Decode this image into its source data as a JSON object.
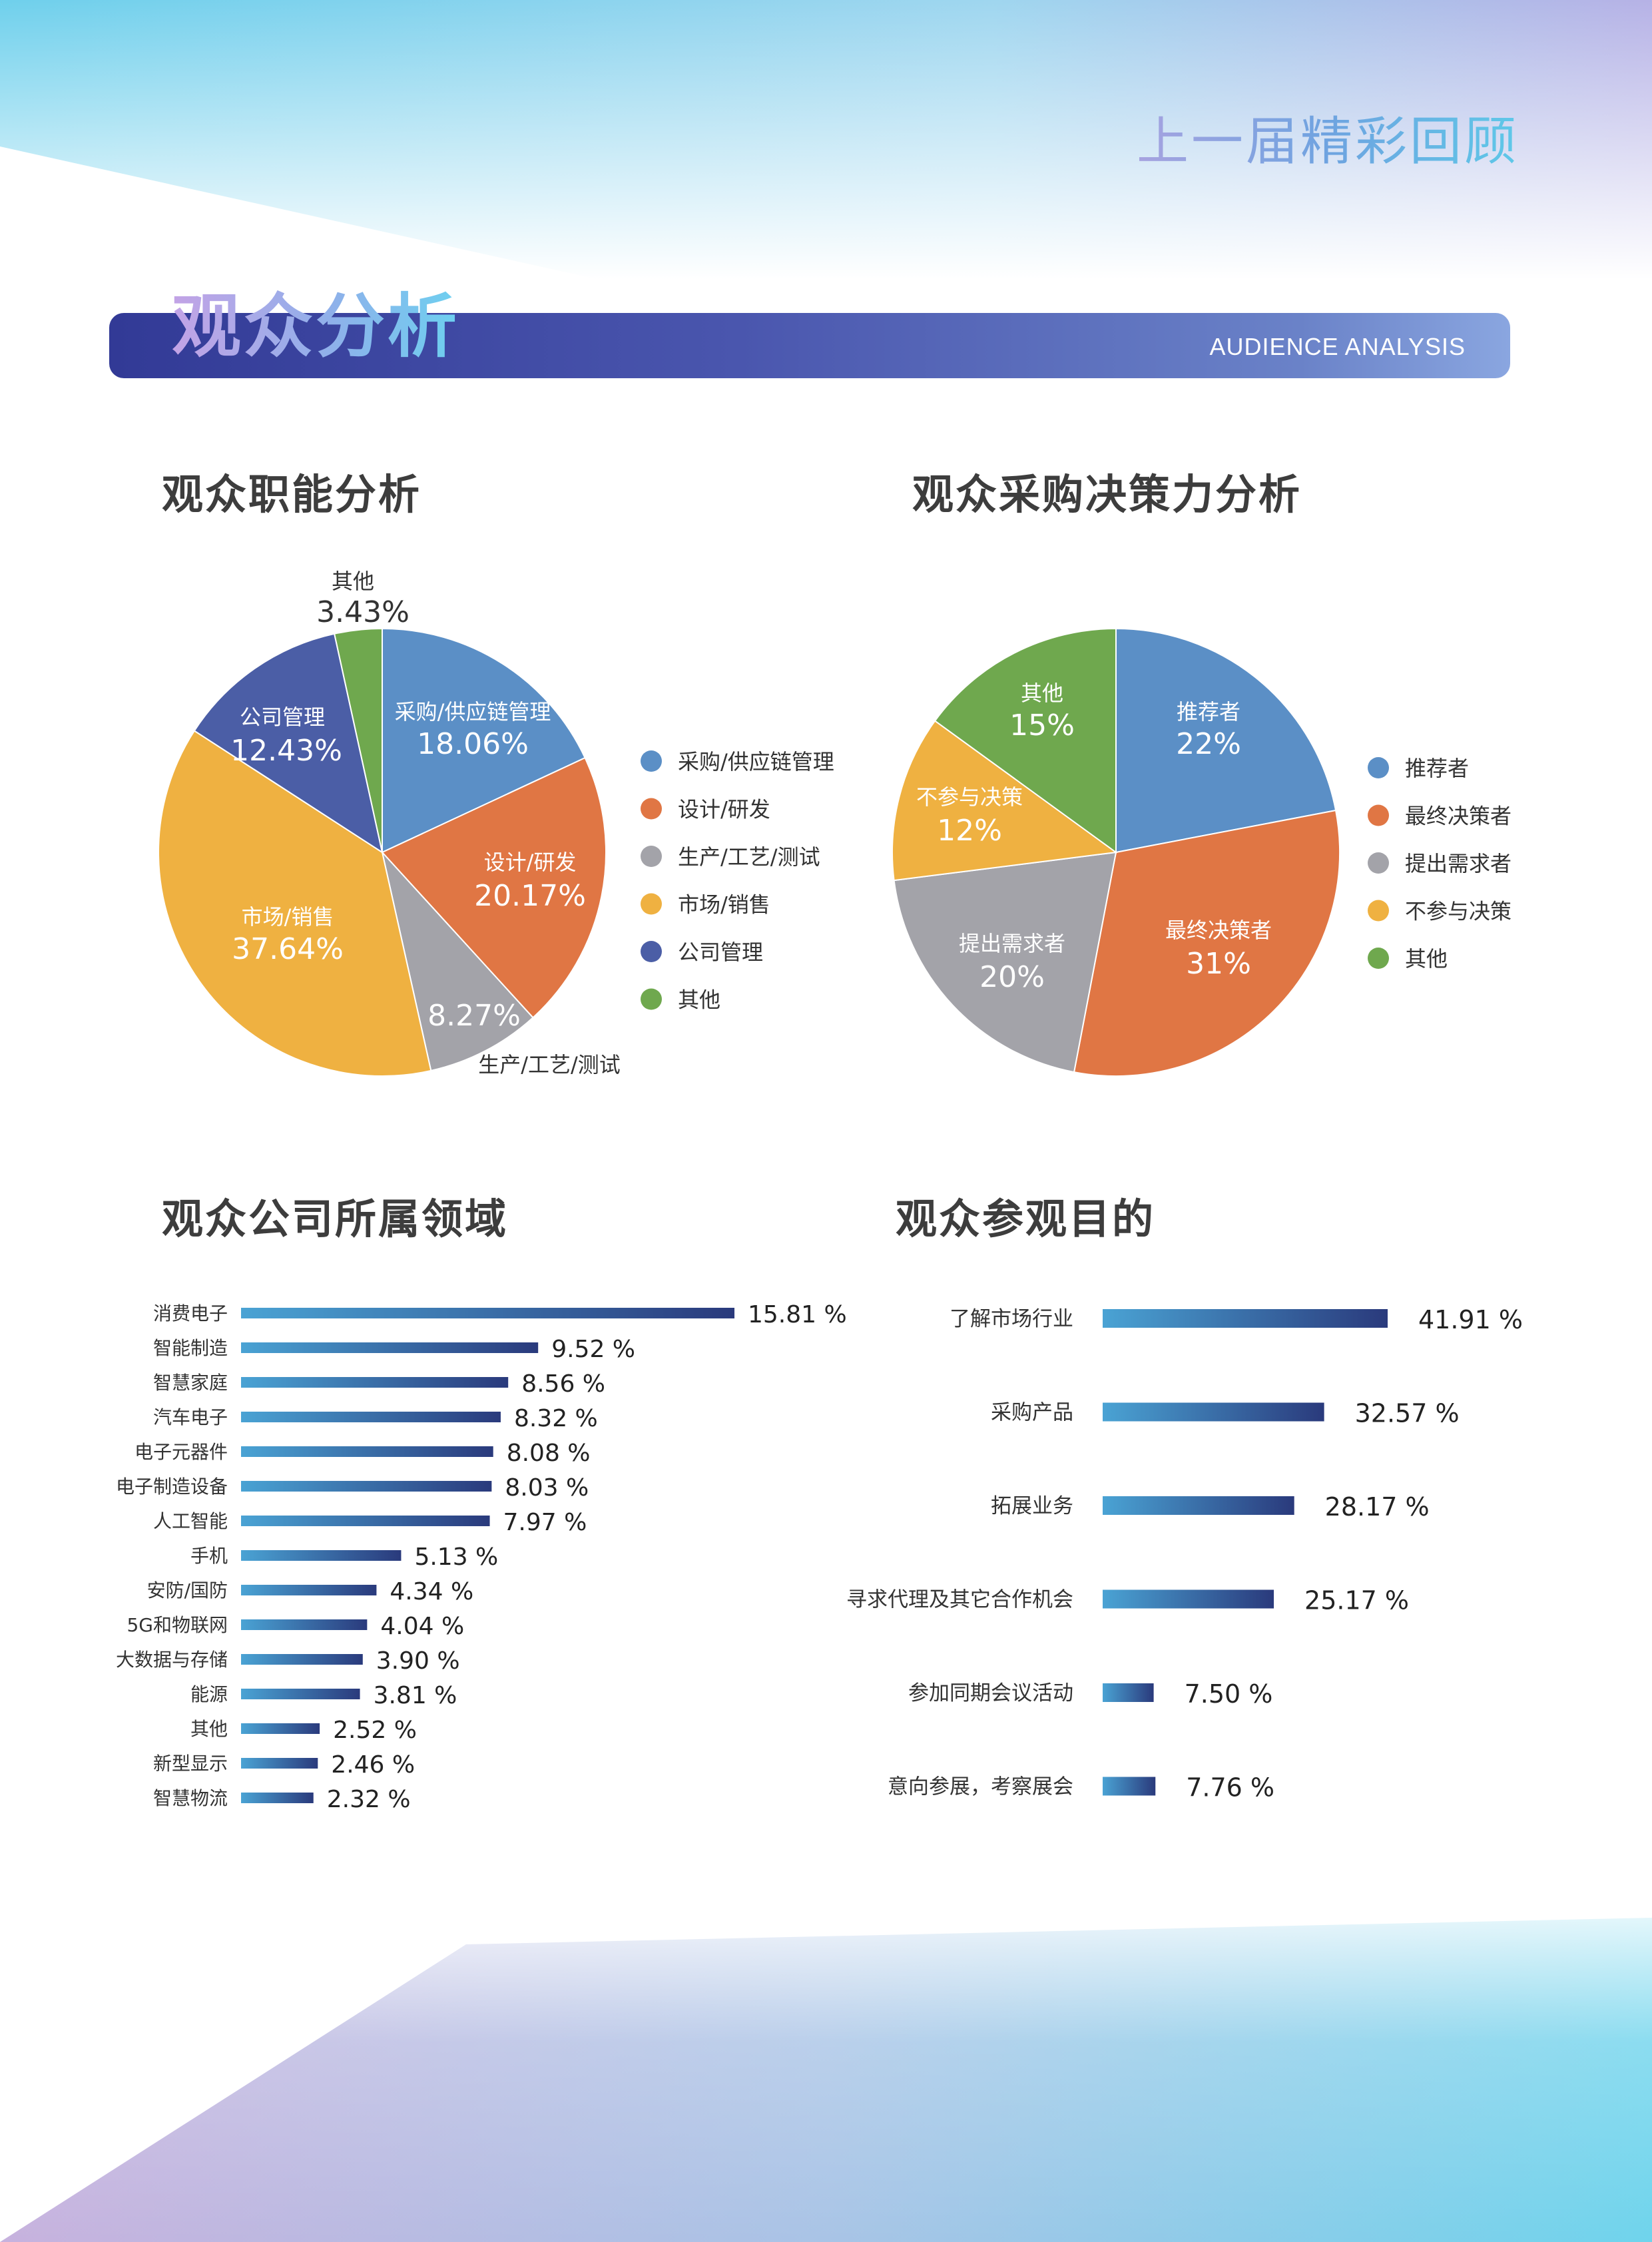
{
  "header": {
    "title": "上一届精彩回顾"
  },
  "banner": {
    "title_cn": "观众分析",
    "title_en": "AUDIENCE ANALYSIS"
  },
  "sections": {
    "function": "观众职能分析",
    "decision": "观众采购决策力分析",
    "industry": "观众公司所属领域",
    "purpose": "观众参观目的"
  },
  "chart_data": [
    {
      "type": "pie",
      "title": "观众职能分析",
      "slices": [
        {
          "label": "采购/供应链管理",
          "value": 18.06,
          "display": "18.06%",
          "color": "#5b8fc6"
        },
        {
          "label": "设计/研发",
          "value": 20.17,
          "display": "20.17%",
          "color": "#e07644"
        },
        {
          "label": "生产/工艺/测试",
          "value": 8.27,
          "display": "8.27%",
          "color": "#a3a3a9"
        },
        {
          "label": "市场/销售",
          "value": 37.64,
          "display": "37.64%",
          "color": "#efb141"
        },
        {
          "label": "公司管理",
          "value": 12.43,
          "display": "12.43%",
          "color": "#4b5ea6"
        },
        {
          "label": "其他",
          "value": 3.43,
          "display": "3.43%",
          "color": "#6fa84e"
        }
      ],
      "legend": [
        "采购/供应链管理",
        "设计/研发",
        "生产/工艺/测试",
        "市场/销售",
        "公司管理",
        "其他"
      ]
    },
    {
      "type": "pie",
      "title": "观众采购决策力分析",
      "slices": [
        {
          "label": "推荐者",
          "value": 22,
          "display": "22%",
          "color": "#5b8fc6"
        },
        {
          "label": "最终决策者",
          "value": 31,
          "display": "31%",
          "color": "#e07644"
        },
        {
          "label": "提出需求者",
          "value": 20,
          "display": "20%",
          "color": "#a3a3a9"
        },
        {
          "label": "不参与决策",
          "value": 12,
          "display": "12%",
          "color": "#efb141"
        },
        {
          "label": "其他",
          "value": 15,
          "display": "15%",
          "color": "#6fa84e"
        }
      ],
      "legend": [
        "推荐者",
        "最终决策者",
        "提出需求者",
        "不参与决策",
        "其他"
      ]
    },
    {
      "type": "bar",
      "orientation": "horizontal",
      "title": "观众公司所属领域",
      "categories": [
        "消费电子",
        "智能制造",
        "智慧家庭",
        "汽车电子",
        "电子元器件",
        "电子制造设备",
        "人工智能",
        "手机",
        "安防/国防",
        "5G和物联网",
        "大数据与存储",
        "能源",
        "其他",
        "新型显示",
        "智慧物流"
      ],
      "values": [
        15.81,
        9.52,
        8.56,
        8.32,
        8.08,
        8.03,
        7.97,
        5.13,
        4.34,
        4.04,
        3.9,
        3.81,
        2.52,
        2.46,
        2.32
      ],
      "labels": [
        "15.81 %",
        "9.52 %",
        "8.56 %",
        "8.32 %",
        "8.08 %",
        "8.03 %",
        "7.97 %",
        "5.13 %",
        "4.34 %",
        "4.04 %",
        "3.90 %",
        "3.81 %",
        "2.52 %",
        "2.46 %",
        "2.32 %"
      ],
      "gradient": [
        "#4aa3d4",
        "#2a3a7c"
      ]
    },
    {
      "type": "bar",
      "orientation": "horizontal",
      "title": "观众参观目的",
      "categories": [
        "了解市场行业",
        "采购产品",
        "拓展业务",
        "寻求代理及其它合作机会",
        "参加同期会议活动",
        "意向参展，考察展会"
      ],
      "values": [
        41.91,
        32.57,
        28.17,
        25.17,
        7.5,
        7.76
      ],
      "labels": [
        "41.91 %",
        "32.57 %",
        "28.17 %",
        "25.17 %",
        "7.50 %",
        "7.76 %"
      ],
      "gradient": [
        "#4aa3d4",
        "#2a3a7c"
      ]
    }
  ]
}
